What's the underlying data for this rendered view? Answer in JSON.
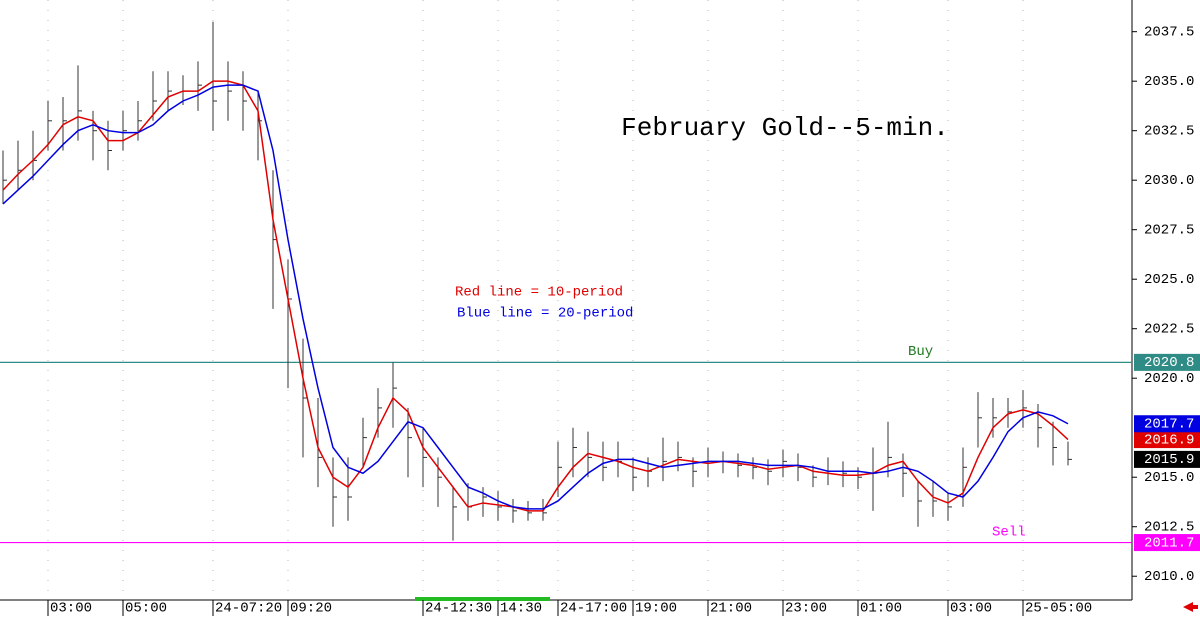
{
  "chart_data": {
    "type": "ohlc",
    "title": "February Gold--5-min.",
    "annotations": [
      "Red line = 10-period",
      "Blue line = 20-period"
    ],
    "categories": [
      null,
      null,
      null,
      "03:00",
      null,
      null,
      null,
      null,
      "05:00",
      null,
      null,
      null,
      null,
      null,
      "24-07:20",
      null,
      null,
      null,
      null,
      "09:20",
      null,
      null,
      null,
      null,
      null,
      null,
      null,
      null,
      "24-12:30",
      null,
      null,
      null,
      null,
      "14:30",
      null,
      null,
      null,
      "24-17:00",
      null,
      null,
      null,
      null,
      "19:00",
      null,
      null,
      null,
      null,
      "21:00",
      null,
      null,
      null,
      null,
      "23:00",
      null,
      null,
      null,
      null,
      "01:00",
      null,
      null,
      null,
      null,
      null,
      "03:00",
      null,
      null,
      null,
      null,
      "25-05:00",
      null,
      null,
      null
    ],
    "high": [
      2031.5,
      2032,
      2032.5,
      2034,
      2034.2,
      2035.8,
      2033.5,
      2033,
      2033.5,
      2034,
      2035.5,
      2035.5,
      2035.3,
      2036,
      2038,
      2036,
      2035.5,
      2034.5,
      2030.5,
      2026,
      2022,
      2019,
      2016,
      2016,
      2018,
      2019.5,
      2020.8,
      2018.5,
      2017.5,
      2016,
      2014.5,
      2014.7,
      2014.5,
      2014.3,
      2013.9,
      2013.8,
      2013.9,
      2016.8,
      2017.5,
      2017.3,
      2016.8,
      2016.8,
      2016,
      2016,
      2017,
      2016.8,
      2016,
      2016.5,
      2016.3,
      2016.2,
      2016,
      2015.9,
      2016.4,
      2016.2,
      2015.6,
      2016,
      2015.8,
      2015.5,
      2016.5,
      2017.8,
      2016.2,
      2014.8,
      2014.8,
      2014.2,
      2016.5,
      2019.3,
      2019,
      2019,
      2019.4,
      2018.7,
      2017.8,
      2016.8
    ],
    "low": [
      2028.8,
      2029.5,
      2030,
      2031.5,
      2031.5,
      2032,
      2031,
      2030.5,
      2031.5,
      2032,
      2033,
      2033.5,
      2033.8,
      2033.5,
      2032.5,
      2033,
      2032.5,
      2031,
      2023.5,
      2019.5,
      2016,
      2014.5,
      2012.5,
      2012.8,
      2015.5,
      2017,
      2017.5,
      2015,
      2014.5,
      2013.5,
      2011.8,
      2012.8,
      2013,
      2012.8,
      2012.7,
      2012.8,
      2012.8,
      2014,
      2015,
      2015,
      2014.8,
      2015,
      2014.3,
      2014.5,
      2014.8,
      2015.3,
      2014.5,
      2015,
      2015.2,
      2015,
      2014.9,
      2014.6,
      2015,
      2014.8,
      2014.5,
      2014.6,
      2014.5,
      2014.4,
      2013.3,
      2015,
      2014,
      2012.5,
      2013,
      2012.8,
      2013.5,
      2016.5,
      2017,
      2017.5,
      2017.5,
      2016.5,
      2015.6,
      2015.6
    ],
    "close": [
      2030,
      2030.5,
      2031,
      2033,
      2033,
      2033.5,
      2032.5,
      2031.5,
      2032.5,
      2033,
      2034,
      2034.5,
      2034.5,
      2034.8,
      2034,
      2034.5,
      2034,
      2033,
      2027,
      2024,
      2019,
      2016,
      2014,
      2014,
      2017,
      2018.5,
      2019.5,
      2017,
      2016,
      2015,
      2013.5,
      2013.5,
      2014,
      2013.5,
      2013.3,
      2013.2,
      2013.2,
      2015.5,
      2016.5,
      2016,
      2015.5,
      2015.8,
      2015,
      2015.3,
      2015.8,
      2016,
      2015.3,
      2015.8,
      2015.8,
      2015.6,
      2015.5,
      2015.3,
      2015.8,
      2015.5,
      2015,
      2015.3,
      2015.2,
      2015,
      2015.2,
      2016,
      2015.2,
      2013.8,
      2013.8,
      2013.5,
      2015.5,
      2018,
      2018,
      2018.3,
      2018.5,
      2017.5,
      2016.5,
      2015.9
    ],
    "bar_color": "#333333",
    "close_box_color": "#000000",
    "series": [
      {
        "color": "#e00000",
        "values": [
          2029.5,
          2030.3,
          2031,
          2031.8,
          2032.8,
          2033.2,
          2033,
          2032,
          2032,
          2032.4,
          2033.3,
          2034.2,
          2034.5,
          2034.5,
          2035,
          2035,
          2034.8,
          2033.5,
          2028,
          2024,
          2020,
          2016.5,
          2015,
          2014.5,
          2015.5,
          2017.5,
          2019,
          2018.3,
          2016.5,
          2015.5,
          2014.5,
          2013.5,
          2013.7,
          2013.6,
          2013.5,
          2013.3,
          2013.3,
          2014.5,
          2015.5,
          2016.2,
          2016,
          2015.8,
          2015.5,
          2015.3,
          2015.6,
          2015.9,
          2015.8,
          2015.7,
          2015.8,
          2015.7,
          2015.6,
          2015.4,
          2015.5,
          2015.6,
          2015.3,
          2015.2,
          2015.1,
          2015.1,
          2015.2,
          2015.6,
          2015.8,
          2014.8,
          2014,
          2013.7,
          2014.2,
          2016,
          2017.5,
          2018.2,
          2018.4,
          2018.2,
          2017.6,
          2016.9
        ]
      },
      {
        "color": "#0000e0",
        "values": [
          2028.8,
          2029.5,
          2030.2,
          2031,
          2031.8,
          2032.5,
          2032.8,
          2032.5,
          2032.4,
          2032.4,
          2032.8,
          2033.5,
          2034,
          2034.3,
          2034.7,
          2034.8,
          2034.8,
          2034.5,
          2031.5,
          2027,
          2023,
          2019.5,
          2016.5,
          2015.5,
          2015.2,
          2015.8,
          2016.8,
          2017.8,
          2017.5,
          2016.5,
          2015.5,
          2014.5,
          2014.2,
          2013.8,
          2013.5,
          2013.4,
          2013.4,
          2013.8,
          2014.5,
          2015.2,
          2015.7,
          2015.9,
          2015.9,
          2015.7,
          2015.5,
          2015.6,
          2015.7,
          2015.8,
          2015.8,
          2015.8,
          2015.7,
          2015.6,
          2015.6,
          2015.6,
          2015.5,
          2015.3,
          2015.3,
          2015.3,
          2015.2,
          2015.3,
          2015.5,
          2015.3,
          2014.8,
          2014.2,
          2014,
          2014.8,
          2016,
          2017.3,
          2018,
          2018.3,
          2018.1,
          2017.7
        ]
      }
    ],
    "levels": [
      {
        "label": "Buy",
        "value": 2020.8,
        "color": "#2e8b86",
        "text_color": "#1f7a1f"
      },
      {
        "label": "Sell",
        "value": 2011.7,
        "color": "#ff00ff",
        "text_color": "#ff00ff"
      }
    ],
    "ylim": [
      2008.9,
      2039.1
    ],
    "yticks": [
      {
        "value": 2010,
        "label": "2010.0"
      },
      2012.5,
      {
        "value": 2015,
        "label": "2015.0"
      },
      {
        "value": 2020,
        "label": "2020.0"
      },
      2022.5,
      {
        "value": 2025,
        "label": "2025.0"
      },
      2027.5,
      {
        "value": 2030,
        "label": "2030.0"
      },
      2032.5,
      {
        "value": 2035,
        "label": "2035.0"
      },
      2037.5
    ],
    "grid": true
  }
}
